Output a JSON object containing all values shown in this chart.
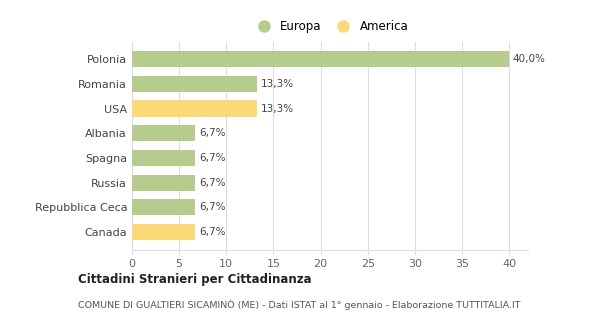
{
  "categories": [
    "Canada",
    "Repubblica Ceca",
    "Russia",
    "Spagna",
    "Albania",
    "USA",
    "Romania",
    "Polonia"
  ],
  "values": [
    6.7,
    6.7,
    6.7,
    6.7,
    6.7,
    13.3,
    13.3,
    40.0
  ],
  "colors": [
    "#f9d97a",
    "#b5cc8e",
    "#b5cc8e",
    "#b5cc8e",
    "#b5cc8e",
    "#f9d97a",
    "#b5cc8e",
    "#b5cc8e"
  ],
  "labels": [
    "6,7%",
    "6,7%",
    "6,7%",
    "6,7%",
    "6,7%",
    "13,3%",
    "13,3%",
    "40,0%"
  ],
  "legend_europa_color": "#b5cc8e",
  "legend_america_color": "#f9d97a",
  "legend_europa_label": "Europa",
  "legend_america_label": "America",
  "xlim": [
    0,
    42
  ],
  "xticks": [
    0,
    5,
    10,
    15,
    20,
    25,
    30,
    35,
    40
  ],
  "title_bold": "Cittadini Stranieri per Cittadinanza",
  "subtitle": "COMUNE DI GUALTIERI SICAMINÒ (ME) - Dati ISTAT al 1° gennaio - Elaborazione TUTTITALIA.IT",
  "background_color": "#ffffff",
  "grid_color": "#dddddd",
  "bar_height": 0.65
}
